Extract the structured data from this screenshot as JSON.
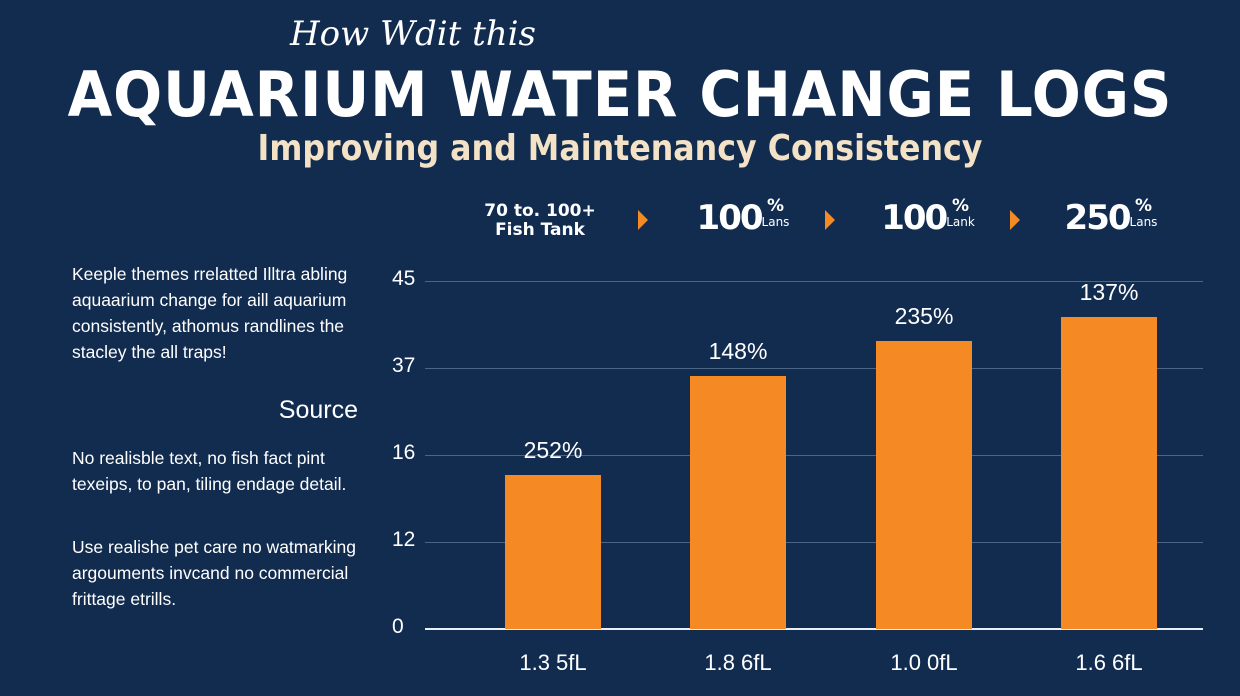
{
  "header": {
    "script_line": "How Wdit this",
    "title": "AQUARIUM WATER CHANGE LOGS",
    "subtitle": "Improving and Maintenancy Consistency"
  },
  "stats_row": {
    "first": {
      "line1": "70 to. 100+",
      "line2": "Fish Tank"
    },
    "items": [
      {
        "value": "100",
        "unit": "%",
        "sub": "Lans"
      },
      {
        "value": "100",
        "unit": "%",
        "sub": "Lank"
      },
      {
        "value": "250",
        "unit": "%",
        "sub": "Lans"
      }
    ],
    "arrow_color": "#f58a25"
  },
  "sidebar": {
    "intro": "Keeple themes rrelatted Illtra abling aquaarium change for aill aquarium consistently, athomus randlines the stacley the all traps!",
    "source_heading": "Source",
    "para1": "No realisble text, no fish fact pint texeips, to pan, tiling endage detail.",
    "para2": "Use realishe pet care no watmarking argouments invcand no commercial frittage etrills."
  },
  "chart_data": {
    "type": "bar",
    "categories": [
      "1.3 5fL",
      "1.8 6fL",
      "1.0 0fL",
      "1.6 6fL"
    ],
    "values": [
      15.1,
      35.1,
      39.5,
      41.7
    ],
    "data_labels": [
      "252%",
      "148%",
      "235%",
      "137%"
    ],
    "y_ticks": [
      0,
      12,
      16,
      37,
      45
    ],
    "y_tick_spacing": "even (non-linear)",
    "ylim": [
      0,
      45
    ],
    "grid": true,
    "legend": "none",
    "bar_color": "#f58a25",
    "background": "#122c50"
  }
}
